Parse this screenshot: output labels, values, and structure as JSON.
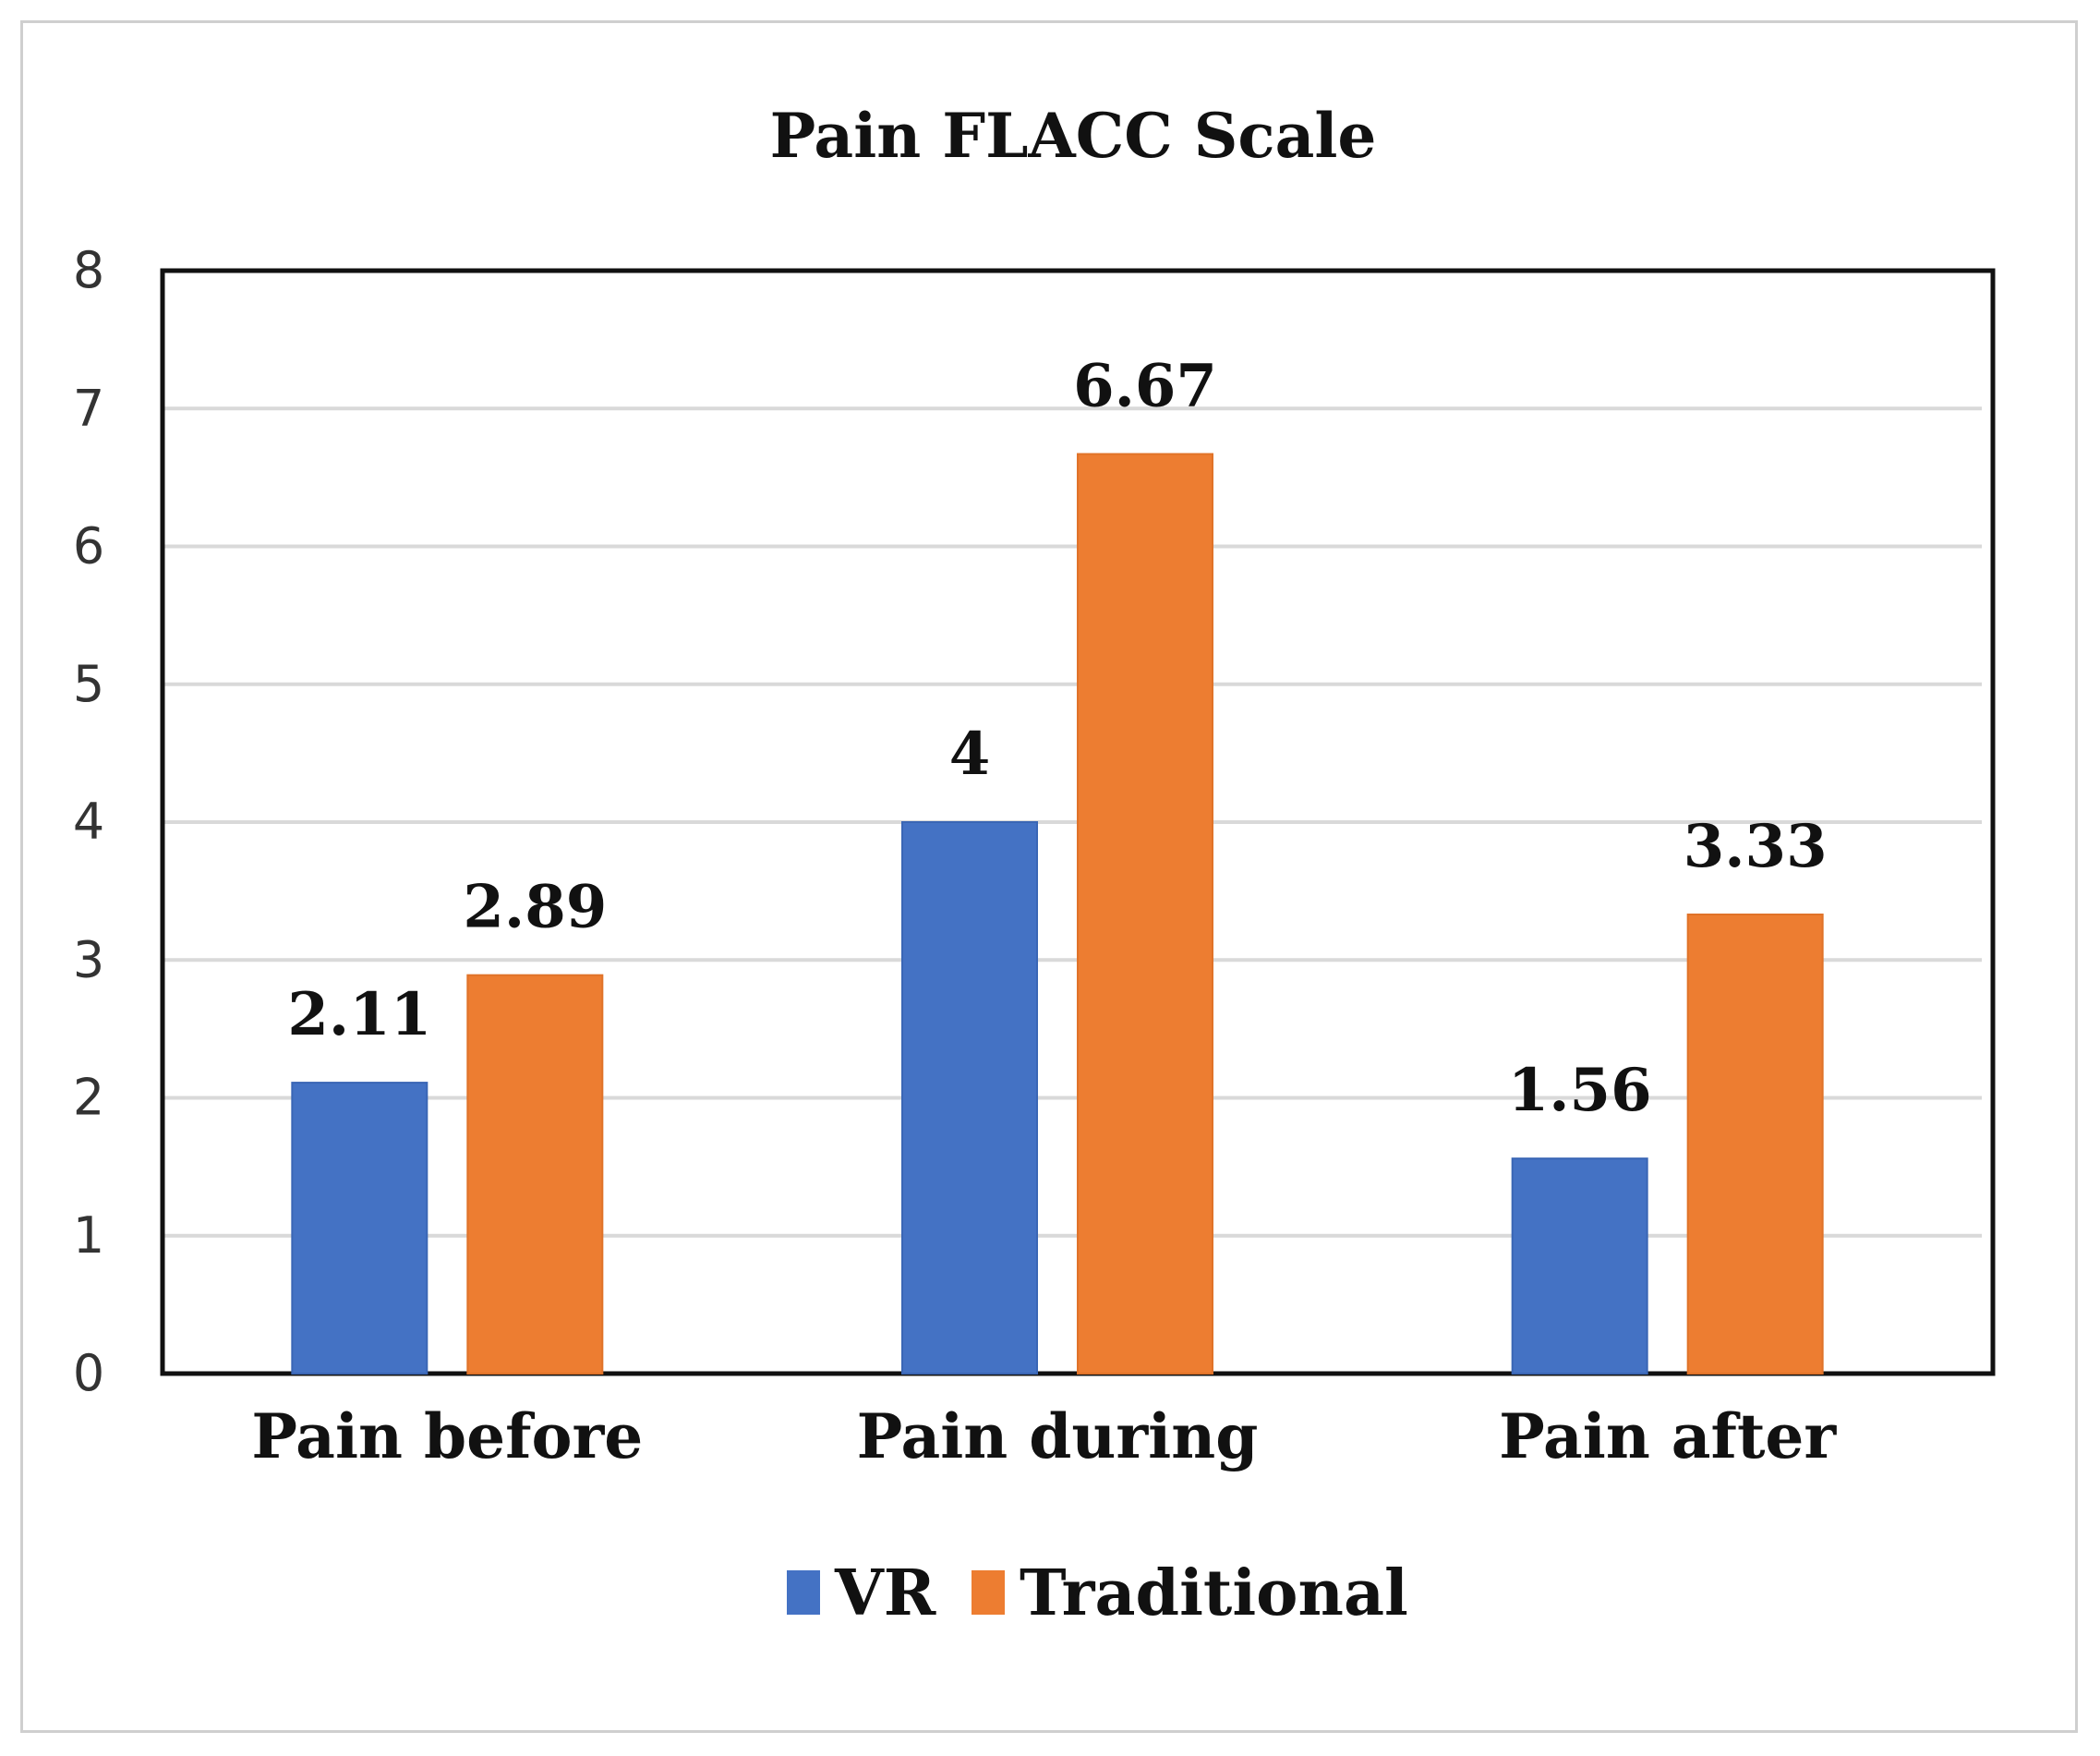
{
  "chart_data": {
    "type": "bar",
    "title": "Pain FLACC Scale",
    "categories": [
      "Pain before",
      "Pain during",
      "Pain after"
    ],
    "series": [
      {
        "name": "VR",
        "values": [
          2.11,
          4,
          1.56
        ],
        "labels": [
          "2.11",
          "4",
          "1.56"
        ],
        "color": "#4472C4"
      },
      {
        "name": "Traditional",
        "values": [
          2.89,
          6.67,
          3.33
        ],
        "labels": [
          "2.89",
          "6.67",
          "3.33"
        ],
        "color": "#ED7D31"
      }
    ],
    "ylim": [
      0,
      8
    ],
    "yticks": [
      "0",
      "1",
      "2",
      "3",
      "4",
      "5",
      "6",
      "7",
      "8"
    ],
    "xlabel": "",
    "ylabel": "",
    "grid": true,
    "legend_position": "bottom"
  }
}
